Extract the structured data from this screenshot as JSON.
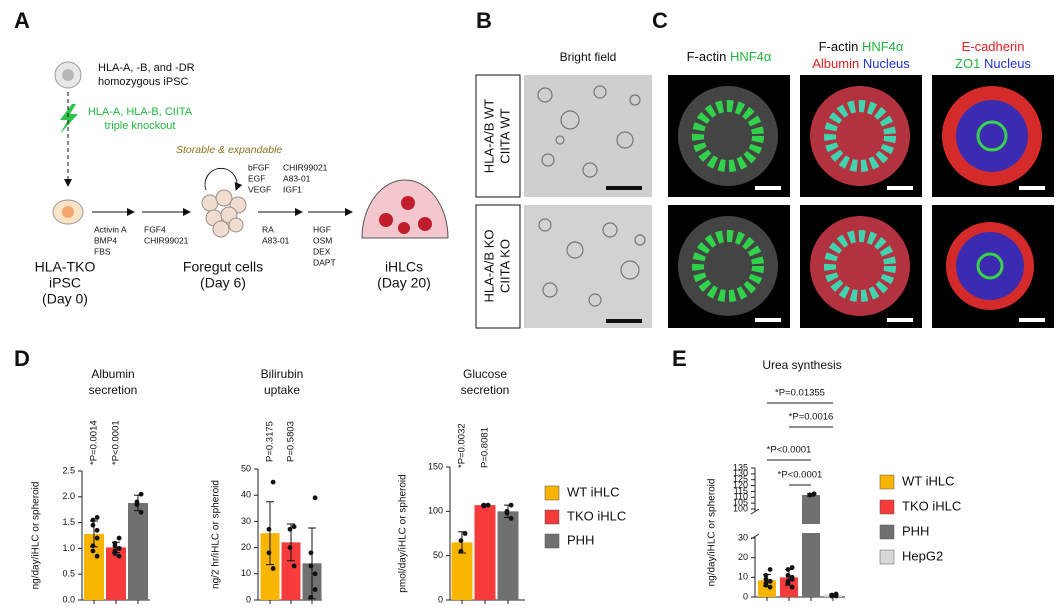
{
  "panel_a": {
    "label": "A",
    "parent_lines": [
      "HLA-A, -B, and -DR",
      "homozygous iPSC"
    ],
    "knockout_lines": [
      "HLA-A, HLA-B, CIITA",
      "triple knockout"
    ],
    "expansion_note": "Storable & expandable",
    "expansion_factors_1": [
      "bFGF",
      "EGF",
      "VEGF"
    ],
    "expansion_factors_2": [
      "CHIR99021",
      "A83-01",
      "IGF1"
    ],
    "step1_factors": [
      "Activin A",
      "BMP4",
      "FBS"
    ],
    "step2_factors": [
      "FGF4",
      "CHIR99021"
    ],
    "step3_factors": [
      "RA",
      "A83-01"
    ],
    "step4_factors": [
      "HGF",
      "OSM",
      "DEX",
      "DAPT"
    ],
    "stage_0": [
      "HLA-TKO",
      "iPSC",
      "(Day 0)"
    ],
    "stage_1": [
      "Foregut cells",
      "(Day 6)"
    ],
    "stage_2": [
      "iHLCs",
      "(Day 20)"
    ]
  },
  "panel_b": {
    "label": "B",
    "column_title": "Bright field",
    "row_labels": [
      [
        "HLA-A/B WT",
        "CIITA WT"
      ],
      [
        "HLA-A/B KO",
        "CIITA KO"
      ]
    ]
  },
  "panel_c": {
    "label": "C",
    "titles": [
      [
        "F-actin",
        "HNF4α"
      ],
      [
        "F-actin",
        "HNF4α",
        "Albumin",
        "Nucleus"
      ],
      [
        "E-cadherin",
        "ZO1",
        "Nucleus"
      ]
    ]
  },
  "panel_d": {
    "label": "D"
  },
  "panel_e": {
    "label": "E"
  },
  "chart_data": [
    {
      "type": "bar",
      "title": [
        "Albumin",
        "secretion"
      ],
      "ylabel": "ng/day/iHLC or spheroid",
      "ylim": [
        0,
        2.5
      ],
      "yticks": [
        {
          "value": 0,
          "label": "0.0"
        },
        0.5,
        {
          "value": 1,
          "label": "1.0"
        },
        1.5,
        {
          "value": 2,
          "label": "2.0"
        },
        2.5
      ],
      "annotations": [
        "*P=0.0014",
        "*P<0.0001"
      ],
      "series": [
        {
          "color": "#f7b500",
          "value": 1.28,
          "error": 0.25,
          "points": [
            1.6,
            1.55,
            1.45,
            1.35,
            1.2,
            1.05,
            0.95,
            0.85
          ]
        },
        {
          "color": "#f53b3b",
          "value": 1.02,
          "error": 0.1,
          "points": [
            1.2,
            1.1,
            1.05,
            1.0,
            1.0,
            0.95,
            0.9,
            0.85
          ]
        },
        {
          "color": "#707070",
          "value": 1.88,
          "error": 0.15,
          "points": [
            2.05,
            1.9,
            1.85,
            1.7
          ]
        }
      ]
    },
    {
      "type": "bar",
      "title": [
        "Bilirubin",
        "uptake"
      ],
      "ylabel": "ng/2 hr/iHLC or spheroid",
      "ylim": [
        0,
        50
      ],
      "yticks": [
        0,
        10,
        20,
        30,
        40,
        50
      ],
      "annotations": [
        "P=0.3175",
        "P=0.5803"
      ],
      "series": [
        {
          "color": "#f7b500",
          "value": 25.5,
          "error": 12,
          "points": [
            45,
            27,
            18,
            12
          ]
        },
        {
          "color": "#f53b3b",
          "value": 22,
          "error": 7,
          "points": [
            28,
            27,
            20,
            13
          ]
        },
        {
          "color": "#707070",
          "value": 14,
          "error": 13.5,
          "points": [
            39,
            18,
            13,
            10,
            4,
            1
          ]
        }
      ]
    },
    {
      "type": "bar",
      "title": [
        "Glucose",
        "secretion"
      ],
      "ylabel": "pmol/day/iHLC or spheroid",
      "ylim": [
        0,
        150
      ],
      "yticks": [
        0,
        50,
        100,
        150
      ],
      "annotations": [
        "*P=0.0032",
        "P=0.8081"
      ],
      "series": [
        {
          "name": "WT iHLC",
          "color": "#f7b500",
          "value": 65,
          "error": 12,
          "points": [
            75,
            67,
            55
          ]
        },
        {
          "name": "TKO iHLC",
          "color": "#f53b3b",
          "value": 107,
          "error": 1,
          "points": [
            107,
            107,
            106
          ]
        },
        {
          "name": "PHH",
          "color": "#707070",
          "value": 100,
          "error": 7,
          "points": [
            107,
            100,
            98,
            92
          ]
        }
      ]
    },
    {
      "type": "bar",
      "title": "Urea synthesis",
      "ylabel": "ng/day/iHLC or spheroid",
      "ylim": [
        0,
        135
      ],
      "axis_break": [
        30,
        100
      ],
      "yticks": [
        0,
        10,
        20,
        30,
        100,
        105,
        110,
        115,
        120,
        125,
        130,
        135
      ],
      "annotations": [
        "*P=0.01355",
        "*P=0.0016",
        "*P<0.0001",
        "*P<0.0001"
      ],
      "series": [
        {
          "name": "WT iHLC",
          "color": "#f7b500",
          "value": 8.5,
          "error": 3,
          "points": [
            14,
            11,
            9,
            8,
            8,
            7,
            6,
            5
          ]
        },
        {
          "name": "TKO iHLC",
          "color": "#f53b3b",
          "value": 10,
          "error": 4,
          "points": [
            15,
            14,
            11,
            10,
            9,
            8,
            7,
            5
          ]
        },
        {
          "name": "PHH",
          "color": "#707070",
          "value": 112,
          "error": 1,
          "points": [
            113,
            112,
            112
          ]
        },
        {
          "name": "HepG2",
          "color": "#d8d8d8",
          "value": 1,
          "error": 0.5,
          "points": [
            1.5,
            1,
            0.5,
            0.5,
            1
          ]
        }
      ]
    }
  ]
}
